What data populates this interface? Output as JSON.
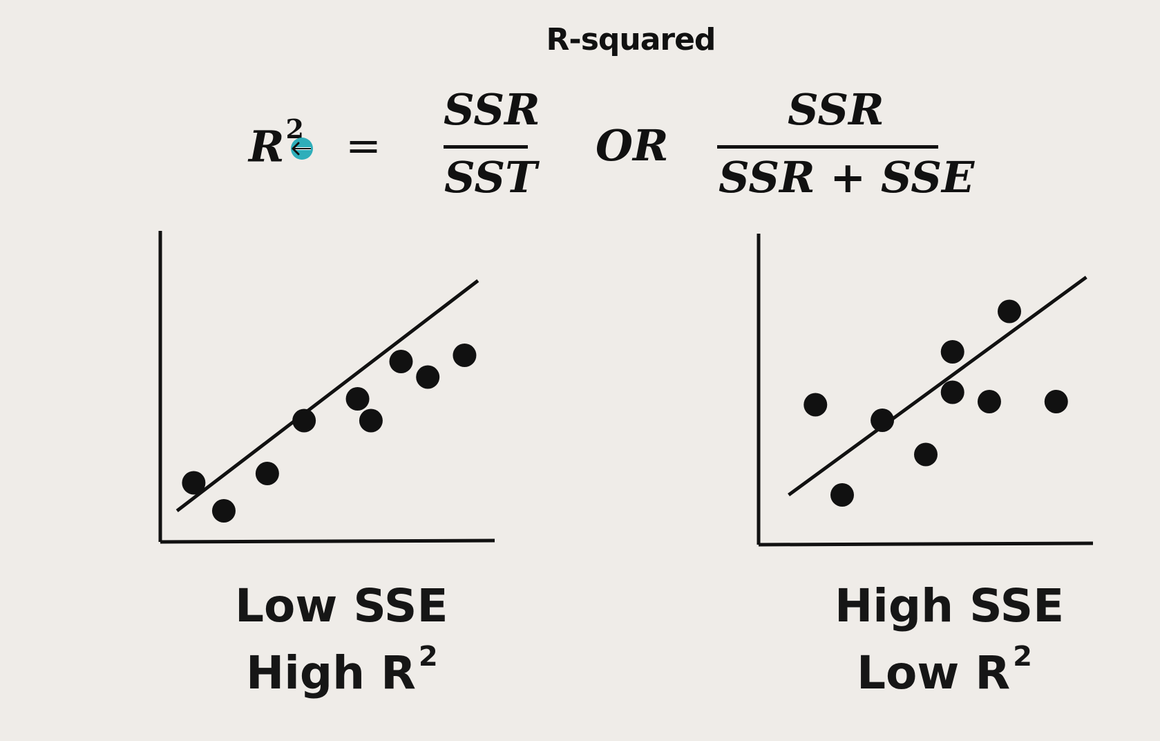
{
  "title": "R-squared",
  "formula": {
    "lhs": "R",
    "lhs_superscript": "2",
    "equals": "=",
    "fraction1": {
      "numerator": "SSR",
      "denominator": "SST"
    },
    "or_text": "OR",
    "fraction2": {
      "numerator": "SSR",
      "denominator": "SSR + SSE"
    }
  },
  "cursor": {
    "icon": "move-cursor-icon",
    "accent": "#19a7b5"
  },
  "panels": [
    {
      "line1": "Low SSE",
      "line2": "High R",
      "superscript": "2",
      "fit_line": [
        [
          0.5,
          1.0
        ],
        [
          9.5,
          8.4
        ]
      ],
      "points": [
        [
          1.0,
          1.9
        ],
        [
          1.9,
          1.0
        ],
        [
          3.2,
          2.2
        ],
        [
          4.3,
          3.9
        ],
        [
          5.9,
          4.6
        ],
        [
          6.3,
          3.9
        ],
        [
          7.2,
          5.8
        ],
        [
          8.0,
          5.3
        ],
        [
          9.1,
          6.0
        ]
      ]
    },
    {
      "line1": "High SSE",
      "line2": "Low R",
      "superscript": "2",
      "fit_line": [
        [
          0.9,
          1.6
        ],
        [
          9.8,
          8.6
        ]
      ],
      "points": [
        [
          1.7,
          4.5
        ],
        [
          2.5,
          1.6
        ],
        [
          3.7,
          4.0
        ],
        [
          5.0,
          2.9
        ],
        [
          5.8,
          4.9
        ],
        [
          5.8,
          6.2
        ],
        [
          6.9,
          4.6
        ],
        [
          7.5,
          7.5
        ],
        [
          8.9,
          4.6
        ]
      ]
    }
  ],
  "colors": {
    "ink": "#111111",
    "background": "#efece8"
  }
}
